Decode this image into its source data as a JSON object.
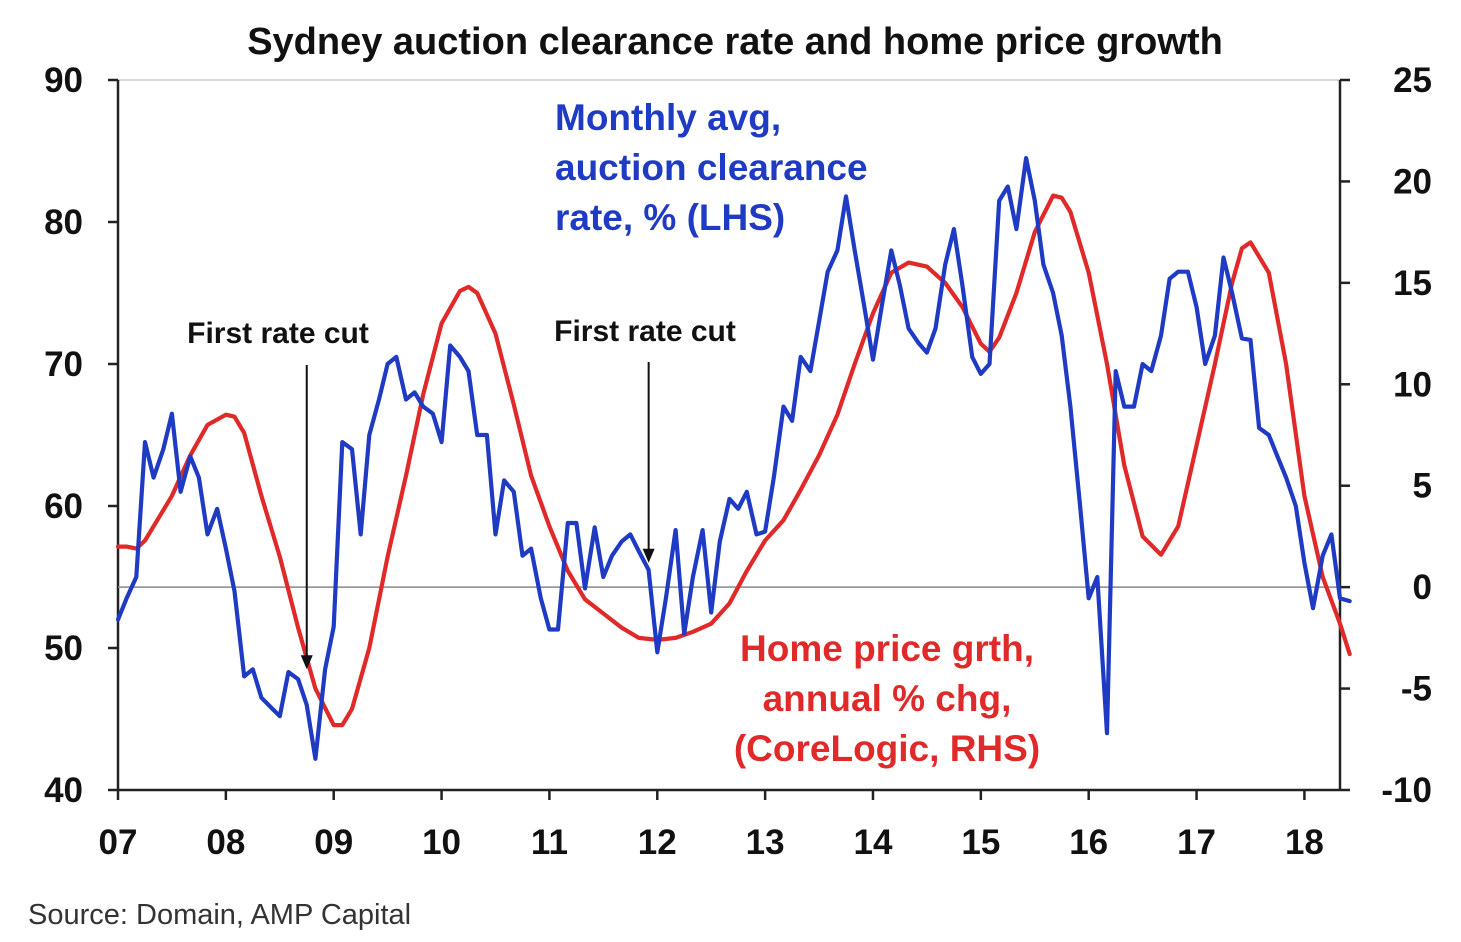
{
  "chart_data": {
    "type": "line",
    "title": "Sydney auction clearance rate and home price growth",
    "source": "Source: Domain, AMP Capital",
    "x_tick_labels": [
      "07",
      "08",
      "09",
      "10",
      "11",
      "12",
      "13",
      "14",
      "15",
      "16",
      "17",
      "18"
    ],
    "x_range": [
      2007,
      2018.33
    ],
    "y_left": {
      "range": [
        40,
        90
      ],
      "ticks": [
        40,
        50,
        60,
        70,
        80,
        90
      ],
      "tick_labels": [
        "40",
        "50",
        "60",
        "70",
        "80",
        "90"
      ]
    },
    "y_right": {
      "range": [
        -10,
        25
      ],
      "ticks": [
        -10,
        -5,
        0,
        5,
        10,
        15,
        20,
        25
      ],
      "tick_labels": [
        "-10",
        "-5",
        "0",
        "5",
        "10",
        "15",
        "20",
        "25"
      ]
    },
    "zero_line_right_axis": 0,
    "series": [
      {
        "name": "Monthly avg, auction clearance rate, % (LHS)",
        "axis": "left",
        "color": "#1f3bc4",
        "label_lines": [
          "Monthly avg,",
          "auction clearance",
          "rate, % (LHS)"
        ],
        "points": [
          [
            2007.0,
            52
          ],
          [
            2007.08,
            53.5
          ],
          [
            2007.17,
            55
          ],
          [
            2007.25,
            64.5
          ],
          [
            2007.33,
            62
          ],
          [
            2007.42,
            64
          ],
          [
            2007.5,
            66.5
          ],
          [
            2007.58,
            61
          ],
          [
            2007.67,
            63.5
          ],
          [
            2007.75,
            62
          ],
          [
            2007.83,
            58
          ],
          [
            2007.92,
            59.8
          ],
          [
            2008.0,
            57
          ],
          [
            2008.08,
            54
          ],
          [
            2008.17,
            48
          ],
          [
            2008.25,
            48.5
          ],
          [
            2008.33,
            46.5
          ],
          [
            2008.42,
            45.8
          ],
          [
            2008.5,
            45.2
          ],
          [
            2008.58,
            48.3
          ],
          [
            2008.67,
            47.8
          ],
          [
            2008.75,
            46
          ],
          [
            2008.83,
            42.2
          ],
          [
            2008.92,
            48.5
          ],
          [
            2009.0,
            51.5
          ],
          [
            2009.08,
            64.5
          ],
          [
            2009.17,
            64
          ],
          [
            2009.25,
            58
          ],
          [
            2009.33,
            65
          ],
          [
            2009.42,
            67.5
          ],
          [
            2009.5,
            70
          ],
          [
            2009.58,
            70.5
          ],
          [
            2009.67,
            67.5
          ],
          [
            2009.75,
            68
          ],
          [
            2009.83,
            67
          ],
          [
            2009.92,
            66.5
          ],
          [
            2010.0,
            64.5
          ],
          [
            2010.08,
            71.3
          ],
          [
            2010.17,
            70.5
          ],
          [
            2010.25,
            69.5
          ],
          [
            2010.33,
            65
          ],
          [
            2010.42,
            65
          ],
          [
            2010.5,
            58
          ],
          [
            2010.58,
            61.8
          ],
          [
            2010.67,
            61
          ],
          [
            2010.75,
            56.5
          ],
          [
            2010.83,
            57
          ],
          [
            2010.92,
            53.5
          ],
          [
            2011.0,
            51.3
          ],
          [
            2011.08,
            51.3
          ],
          [
            2011.17,
            58.8
          ],
          [
            2011.25,
            58.8
          ],
          [
            2011.33,
            54.2
          ],
          [
            2011.42,
            58.5
          ],
          [
            2011.5,
            55
          ],
          [
            2011.58,
            56.5
          ],
          [
            2011.67,
            57.5
          ],
          [
            2011.75,
            58
          ],
          [
            2011.83,
            56.8
          ],
          [
            2011.92,
            55.5
          ],
          [
            2012.0,
            49.7
          ],
          [
            2012.08,
            53.5
          ],
          [
            2012.17,
            58.3
          ],
          [
            2012.25,
            51
          ],
          [
            2012.33,
            55
          ],
          [
            2012.42,
            58.3
          ],
          [
            2012.5,
            52.5
          ],
          [
            2012.58,
            57.5
          ],
          [
            2012.67,
            60.5
          ],
          [
            2012.75,
            59.8
          ],
          [
            2012.83,
            61
          ],
          [
            2012.92,
            58
          ],
          [
            2013.0,
            58.2
          ],
          [
            2013.08,
            62
          ],
          [
            2013.17,
            67
          ],
          [
            2013.25,
            66
          ],
          [
            2013.33,
            70.5
          ],
          [
            2013.42,
            69.5
          ],
          [
            2013.5,
            73
          ],
          [
            2013.58,
            76.5
          ],
          [
            2013.67,
            78
          ],
          [
            2013.75,
            81.8
          ],
          [
            2013.83,
            78
          ],
          [
            2013.92,
            74
          ],
          [
            2014.0,
            70.3
          ],
          [
            2014.08,
            74
          ],
          [
            2014.17,
            78
          ],
          [
            2014.25,
            75.5
          ],
          [
            2014.33,
            72.5
          ],
          [
            2014.42,
            71.5
          ],
          [
            2014.5,
            70.8
          ],
          [
            2014.58,
            72.5
          ],
          [
            2014.67,
            77
          ],
          [
            2014.75,
            79.5
          ],
          [
            2014.83,
            75.5
          ],
          [
            2014.92,
            70.5
          ],
          [
            2015.0,
            69.3
          ],
          [
            2015.08,
            70
          ],
          [
            2015.17,
            81.5
          ],
          [
            2015.25,
            82.5
          ],
          [
            2015.33,
            79.5
          ],
          [
            2015.42,
            84.5
          ],
          [
            2015.5,
            81.5
          ],
          [
            2015.58,
            77
          ],
          [
            2015.67,
            75
          ],
          [
            2015.75,
            72
          ],
          [
            2015.83,
            67
          ],
          [
            2015.92,
            60
          ],
          [
            2016.0,
            53.5
          ],
          [
            2016.08,
            55
          ],
          [
            2016.17,
            44
          ],
          [
            2016.25,
            69.5
          ],
          [
            2016.33,
            67
          ],
          [
            2016.42,
            67
          ],
          [
            2016.5,
            70
          ],
          [
            2016.58,
            69.5
          ],
          [
            2016.67,
            72
          ],
          [
            2016.75,
            76
          ],
          [
            2016.83,
            76.5
          ],
          [
            2016.92,
            76.5
          ],
          [
            2017.0,
            74
          ],
          [
            2017.08,
            70
          ],
          [
            2017.17,
            72
          ],
          [
            2017.25,
            77.5
          ],
          [
            2017.33,
            75
          ],
          [
            2017.42,
            71.8
          ],
          [
            2017.5,
            71.7
          ],
          [
            2017.58,
            65.5
          ],
          [
            2017.67,
            65
          ],
          [
            2017.75,
            63.5
          ],
          [
            2017.83,
            62
          ],
          [
            2017.92,
            60
          ],
          [
            2018.0,
            56
          ],
          [
            2018.08,
            52.8
          ],
          [
            2018.17,
            56.5
          ],
          [
            2018.25,
            58
          ],
          [
            2018.33,
            53.5
          ],
          [
            2018.42,
            53.3
          ]
        ]
      },
      {
        "name": "Home price grth, annual % chg, (CoreLogic, RHS)",
        "axis": "right",
        "color": "#e02a2a",
        "label_lines": [
          "Home price grth,",
          "annual % chg,",
          "(CoreLogic, RHS)"
        ],
        "points": [
          [
            2007.0,
            2
          ],
          [
            2007.08,
            2
          ],
          [
            2007.17,
            1.9
          ],
          [
            2007.25,
            2.3
          ],
          [
            2007.33,
            3
          ],
          [
            2007.5,
            4.5
          ],
          [
            2007.67,
            6.5
          ],
          [
            2007.83,
            8
          ],
          [
            2008.0,
            8.5
          ],
          [
            2008.08,
            8.4
          ],
          [
            2008.17,
            7.6
          ],
          [
            2008.33,
            4.5
          ],
          [
            2008.5,
            1.5
          ],
          [
            2008.67,
            -2
          ],
          [
            2008.83,
            -5
          ],
          [
            2009.0,
            -6.8
          ],
          [
            2009.08,
            -6.8
          ],
          [
            2009.17,
            -6
          ],
          [
            2009.33,
            -3
          ],
          [
            2009.5,
            1.5
          ],
          [
            2009.67,
            5.5
          ],
          [
            2009.83,
            9.5
          ],
          [
            2010.0,
            13
          ],
          [
            2010.17,
            14.6
          ],
          [
            2010.25,
            14.8
          ],
          [
            2010.33,
            14.5
          ],
          [
            2010.5,
            12.5
          ],
          [
            2010.67,
            9
          ],
          [
            2010.83,
            5.5
          ],
          [
            2011.0,
            3
          ],
          [
            2011.17,
            0.8
          ],
          [
            2011.33,
            -0.6
          ],
          [
            2011.5,
            -1.3
          ],
          [
            2011.67,
            -2
          ],
          [
            2011.83,
            -2.5
          ],
          [
            2012.0,
            -2.6
          ],
          [
            2012.17,
            -2.5
          ],
          [
            2012.33,
            -2.2
          ],
          [
            2012.5,
            -1.8
          ],
          [
            2012.67,
            -0.8
          ],
          [
            2012.83,
            0.8
          ],
          [
            2013.0,
            2.3
          ],
          [
            2013.17,
            3.3
          ],
          [
            2013.33,
            4.8
          ],
          [
            2013.5,
            6.5
          ],
          [
            2013.67,
            8.5
          ],
          [
            2013.83,
            11
          ],
          [
            2014.0,
            13.5
          ],
          [
            2014.17,
            15.5
          ],
          [
            2014.33,
            16
          ],
          [
            2014.5,
            15.8
          ],
          [
            2014.67,
            15
          ],
          [
            2014.83,
            13.8
          ],
          [
            2015.0,
            12
          ],
          [
            2015.08,
            11.6
          ],
          [
            2015.17,
            12.3
          ],
          [
            2015.33,
            14.5
          ],
          [
            2015.5,
            17.5
          ],
          [
            2015.67,
            19.3
          ],
          [
            2015.75,
            19.2
          ],
          [
            2015.83,
            18.5
          ],
          [
            2016.0,
            15.5
          ],
          [
            2016.17,
            11
          ],
          [
            2016.33,
            6
          ],
          [
            2016.5,
            2.5
          ],
          [
            2016.67,
            1.6
          ],
          [
            2016.83,
            3
          ],
          [
            2017.0,
            7
          ],
          [
            2017.17,
            11
          ],
          [
            2017.33,
            15
          ],
          [
            2017.42,
            16.7
          ],
          [
            2017.5,
            17
          ],
          [
            2017.67,
            15.5
          ],
          [
            2017.83,
            11
          ],
          [
            2018.0,
            4.5
          ],
          [
            2018.17,
            0.5
          ],
          [
            2018.33,
            -1.8
          ],
          [
            2018.42,
            -3.3
          ]
        ]
      }
    ],
    "annotations": [
      {
        "text": "First rate cut",
        "x": 2008.75,
        "y_left": 48.5
      },
      {
        "text": "First rate cut",
        "x": 2011.92,
        "y_left": 56
      }
    ]
  }
}
